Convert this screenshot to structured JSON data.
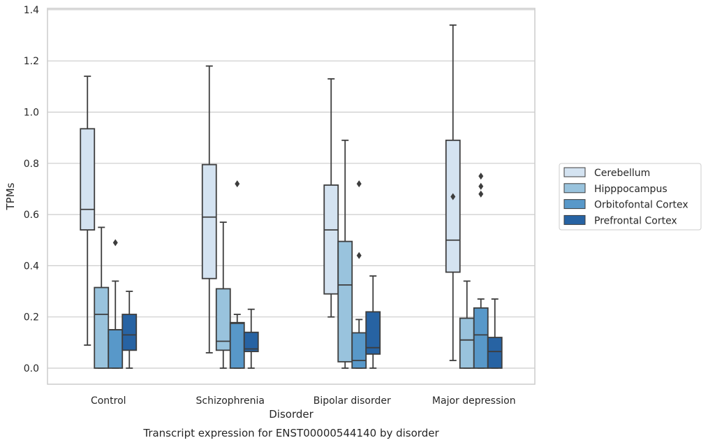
{
  "chart_data": {
    "type": "boxplot",
    "title": "Transcript expression for ENST00000544140 by disorder",
    "xlabel": "Disorder",
    "ylabel": "TPMs",
    "ylim": [
      -0.06,
      1.41
    ],
    "yticks": [
      0.0,
      0.2,
      0.4,
      0.6,
      0.8,
      1.0,
      1.2,
      1.4
    ],
    "ytick_labels": [
      "0.0",
      "0.2",
      "0.4",
      "0.6",
      "0.8",
      "1.0",
      "1.2",
      "1.4"
    ],
    "grid": "horizontal",
    "legend_position": "right",
    "categories": [
      "Control",
      "Schizophrenia",
      "Bipolar disorder",
      "Major depression"
    ],
    "series": [
      {
        "name": "Cerebellum",
        "color": "#d4e3f1",
        "boxes": [
          {
            "min": 0.09,
            "q1": 0.54,
            "median": 0.62,
            "q3": 0.935,
            "max": 1.14,
            "outliers": []
          },
          {
            "min": 0.06,
            "q1": 0.35,
            "median": 0.59,
            "q3": 0.795,
            "max": 1.18,
            "outliers": []
          },
          {
            "min": 0.2,
            "q1": 0.29,
            "median": 0.54,
            "q3": 0.715,
            "max": 1.13,
            "outliers": []
          },
          {
            "min": 0.03,
            "q1": 0.375,
            "median": 0.5,
            "q3": 0.89,
            "max": 1.34,
            "outliers": [
              0.67
            ]
          }
        ]
      },
      {
        "name": "Hipppocampus",
        "color": "#99c3dd",
        "boxes": [
          {
            "min": 0.0,
            "q1": 0.0,
            "median": 0.21,
            "q3": 0.315,
            "max": 0.55,
            "outliers": []
          },
          {
            "min": 0.0,
            "q1": 0.07,
            "median": 0.105,
            "q3": 0.31,
            "max": 0.57,
            "outliers": []
          },
          {
            "min": 0.0,
            "q1": 0.025,
            "median": 0.325,
            "q3": 0.495,
            "max": 0.89,
            "outliers": []
          },
          {
            "min": 0.0,
            "q1": 0.0,
            "median": 0.11,
            "q3": 0.195,
            "max": 0.34,
            "outliers": []
          }
        ]
      },
      {
        "name": "Orbitofontal Cortex",
        "color": "#5898c9",
        "boxes": [
          {
            "min": 0.0,
            "q1": 0.0,
            "median": 0.15,
            "q3": 0.15,
            "max": 0.34,
            "outliers": [
              0.49
            ]
          },
          {
            "min": 0.0,
            "q1": 0.0,
            "median": 0.175,
            "q3": 0.178,
            "max": 0.21,
            "outliers": [
              0.72
            ]
          },
          {
            "min": 0.0,
            "q1": 0.0,
            "median": 0.03,
            "q3": 0.138,
            "max": 0.19,
            "outliers": [
              0.72,
              0.44
            ]
          },
          {
            "min": 0.0,
            "q1": 0.0,
            "median": 0.13,
            "q3": 0.235,
            "max": 0.27,
            "outliers": [
              0.75,
              0.71,
              0.68
            ]
          }
        ]
      },
      {
        "name": "Prefrontal Cortex",
        "color": "#2763a3",
        "boxes": [
          {
            "min": 0.0,
            "q1": 0.07,
            "median": 0.13,
            "q3": 0.21,
            "max": 0.3,
            "outliers": []
          },
          {
            "min": 0.0,
            "q1": 0.065,
            "median": 0.075,
            "q3": 0.14,
            "max": 0.23,
            "outliers": []
          },
          {
            "min": 0.0,
            "q1": 0.055,
            "median": 0.08,
            "q3": 0.22,
            "max": 0.36,
            "outliers": []
          },
          {
            "min": 0.0,
            "q1": 0.0,
            "median": 0.065,
            "q3": 0.12,
            "max": 0.27,
            "outliers": []
          }
        ]
      }
    ]
  }
}
